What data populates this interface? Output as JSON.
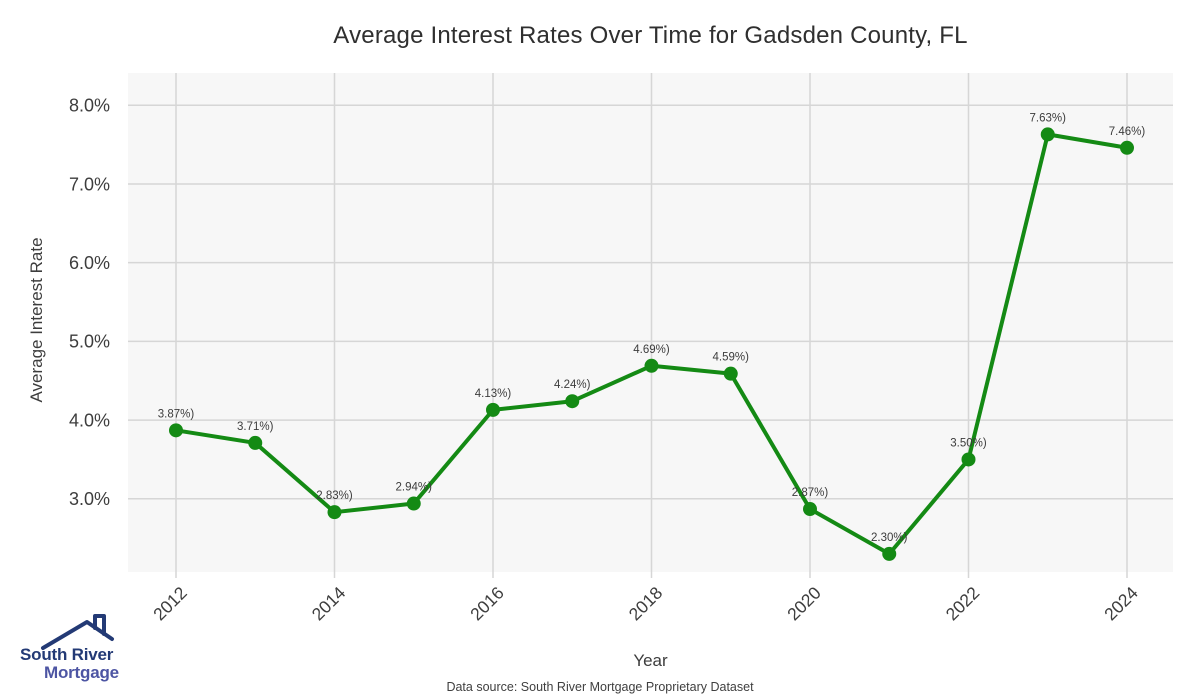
{
  "chart_data": {
    "type": "line",
    "title": "Average Interest Rates Over Time for Gadsden County, FL",
    "xlabel": "Year",
    "ylabel": "Average Interest Rate",
    "x": [
      2012,
      2013,
      2014,
      2015,
      2016,
      2017,
      2018,
      2019,
      2020,
      2021,
      2022,
      2023,
      2024
    ],
    "series": [
      {
        "name": "Average Interest Rate",
        "values": [
          3.87,
          3.71,
          2.83,
          2.94,
          4.13,
          4.24,
          4.69,
          4.59,
          2.87,
          2.3,
          3.5,
          7.63,
          7.46
        ]
      }
    ],
    "point_labels": [
      "3.87%)",
      "3.71%)",
      "2.83%)",
      "2.94%)",
      "4.13%)",
      "4.24%)",
      "4.69%)",
      "4.59%)",
      "2.87%)",
      "2.30%)",
      "3.50%)",
      "7.63%)",
      "7.46%)"
    ],
    "xtick_labels": [
      "2012",
      "2014",
      "2016",
      "2018",
      "2020",
      "2022",
      "2024"
    ],
    "ytick_values": [
      3,
      4,
      5,
      6,
      7,
      8
    ],
    "ytick_labels": [
      "3.0%",
      "4.0%",
      "5.0%",
      "6.0%",
      "7.0%",
      "8.0%"
    ],
    "ylim": [
      2.07,
      8.41
    ],
    "grid": true,
    "legend_position": "none",
    "line_color": "#148a14",
    "marker_color": "#148a14",
    "plot_background": "#f7f7f7",
    "grid_color": "#d6d6d6",
    "tick_label_color": "#3d3d3d",
    "point_label_color": "#3c3c3c"
  },
  "footer": {
    "source": "Data source: South River Mortgage Proprietary Dataset"
  },
  "logo": {
    "line1": "South River",
    "line2": "Mortgage",
    "color_primary": "#233a75",
    "color_secondary": "#4d55a3"
  }
}
